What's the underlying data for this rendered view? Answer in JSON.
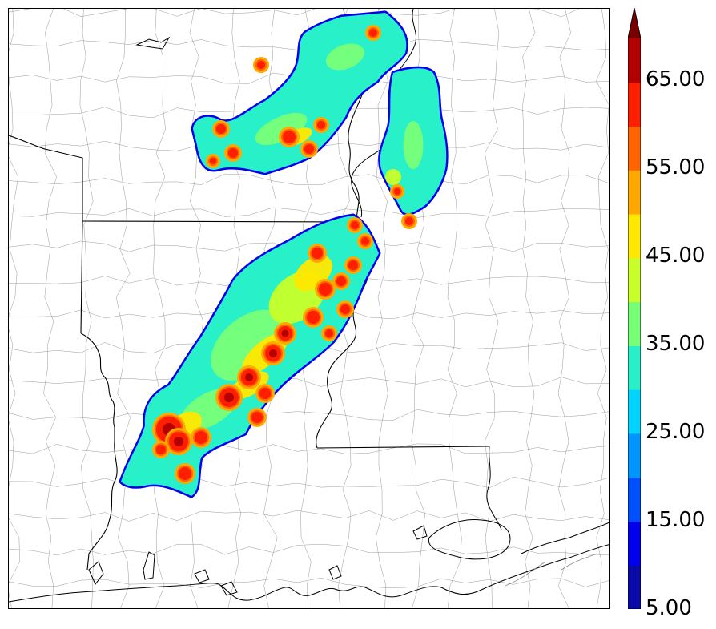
{
  "colorbar": {
    "labels": [
      "65.00",
      "55.00",
      "45.00",
      "35.00",
      "25.00",
      "15.00",
      "5.00"
    ],
    "levels": [
      5,
      10,
      15,
      20,
      25,
      30,
      35,
      40,
      45,
      50,
      55,
      60,
      65,
      70
    ],
    "colors": [
      "#0a0aa8",
      "#0000ee",
      "#0050ff",
      "#0096ff",
      "#00d4ff",
      "#28f0c8",
      "#78ff78",
      "#c8ff28",
      "#ffe800",
      "#ffa800",
      "#ff6400",
      "#ff1e00",
      "#b40000"
    ],
    "extend_color": "#780000"
  },
  "map": {
    "background": "#ffffff",
    "state_line_color": "#000000",
    "county_line_color": "#9a9a9a"
  }
}
